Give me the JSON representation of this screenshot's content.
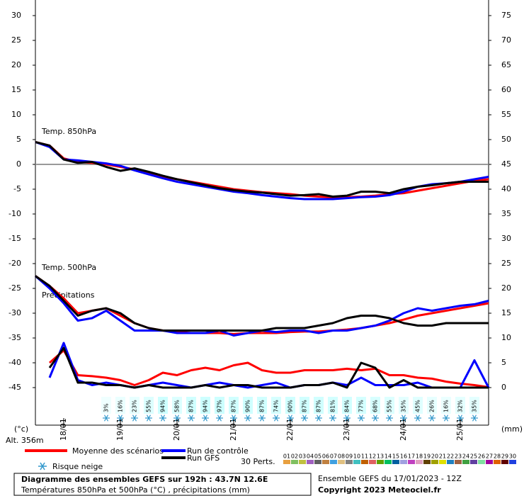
{
  "chart_data": {
    "type": "line",
    "x": [
      0,
      6,
      12,
      18,
      24,
      30,
      36,
      42,
      48,
      54,
      60,
      66,
      72,
      78,
      84,
      90,
      96,
      102,
      108,
      114,
      120,
      126,
      132,
      138,
      144,
      150,
      156,
      162,
      168,
      174,
      180,
      186,
      192
    ],
    "xlim": [
      0,
      192
    ],
    "xticks": [
      {
        "value": 12,
        "label": "18/01"
      },
      {
        "value": 36,
        "label": "19/01"
      },
      {
        "value": 60,
        "label": "20/01"
      },
      {
        "value": 84,
        "label": "21/01"
      },
      {
        "value": 108,
        "label": "22/01"
      },
      {
        "value": 132,
        "label": "23/01"
      },
      {
        "value": 156,
        "label": "24/01"
      },
      {
        "value": 180,
        "label": "25/01"
      }
    ],
    "ylim": [
      -45,
      30
    ],
    "yticks": [
      -45,
      -40,
      -35,
      -30,
      -25,
      -20,
      -15,
      -10,
      -5,
      0,
      5,
      10,
      15,
      20,
      25,
      30
    ],
    "y2lim": [
      0,
      75
    ],
    "y2ticks": [
      0,
      5,
      10,
      15,
      20,
      25,
      30,
      35,
      40,
      45,
      50,
      55,
      60,
      65,
      70,
      75
    ],
    "ylabel": "(°c)",
    "y2label": "(mm)",
    "altitude": "Alt. 356m",
    "annotations": [
      "Temp. 850hPa",
      "Temp. 500hPa",
      "Précipitations"
    ],
    "series": [
      {
        "name": "Moyenne des scénarios",
        "color": "#ff0000",
        "values": [
          4.5,
          3.8,
          1.2,
          0.5,
          0.3,
          0,
          -0.5,
          -1,
          -1.8,
          -2.5,
          -3,
          -3.5,
          -4,
          -4.5,
          -5,
          -5.3,
          -5.6,
          -5.8,
          -6,
          -6.3,
          -6.5,
          -6.6,
          -6.6,
          -6.5,
          -6.3,
          -6,
          -5.8,
          -5.3,
          -4.8,
          -4.3,
          -3.8,
          -3.3,
          -3
        ]
      },
      {
        "name": "Run de contrôle",
        "color": "#0000ff",
        "values": [
          4.5,
          3.5,
          1,
          0.8,
          0.5,
          0.2,
          -0.3,
          -1.2,
          -2,
          -2.8,
          -3.5,
          -4,
          -4.5,
          -5,
          -5.5,
          -5.8,
          -6.2,
          -6.5,
          -6.8,
          -7,
          -7,
          -7,
          -6.8,
          -6.6,
          -6.5,
          -6.2,
          -5.5,
          -4.5,
          -4,
          -3.8,
          -3.5,
          -3,
          -2.5
        ]
      },
      {
        "name": "Run GFS",
        "color": "#000000",
        "values": [
          4.5,
          3.8,
          1,
          0.3,
          0.5,
          -0.5,
          -1.3,
          -0.8,
          -1.5,
          -2.3,
          -3,
          -3.6,
          -4.2,
          -4.8,
          -5.2,
          -5.5,
          -5.7,
          -6,
          -6.3,
          -6.2,
          -6,
          -6.5,
          -6.3,
          -5.5,
          -5.5,
          -5.8,
          -5,
          -4.5,
          -4.2,
          -3.8,
          -3.5,
          -3.5,
          -3.5
        ]
      },
      {
        "name": "Moyenne des scénarios",
        "color": "#ff0000",
        "values": [
          -22.5,
          -24.5,
          -27,
          -30,
          -29.5,
          -29,
          -30.5,
          -32,
          -33,
          -33.5,
          -33.8,
          -34,
          -34,
          -34,
          -34.2,
          -34,
          -34,
          -34,
          -33.8,
          -33.7,
          -33.7,
          -33.5,
          -33.3,
          -33,
          -32.5,
          -32,
          -31.3,
          -30.5,
          -30,
          -29.5,
          -29,
          -28.5,
          -28
        ]
      },
      {
        "name": "Run de contrôle",
        "color": "#0000ff",
        "values": [
          -22.5,
          -25,
          -28,
          -31.5,
          -31,
          -29.5,
          -31.5,
          -33.5,
          -33.5,
          -33.5,
          -34,
          -34,
          -34,
          -33.5,
          -34.5,
          -34,
          -33.5,
          -33.8,
          -33.5,
          -33.5,
          -34,
          -33.5,
          -33.5,
          -33,
          -32.5,
          -31.5,
          -30,
          -29,
          -29.5,
          -29,
          -28.5,
          -28.2,
          -27.5
        ]
      },
      {
        "name": "Run GFS",
        "color": "#000000",
        "values": [
          -22.5,
          -24.5,
          -27.5,
          -30.5,
          -29.5,
          -29,
          -30,
          -32,
          -33,
          -33.5,
          -33.5,
          -33.5,
          -33.5,
          -33.5,
          -33.5,
          -33.5,
          -33.5,
          -33,
          -33,
          -33,
          -32.5,
          -32,
          -31,
          -30.5,
          -30.5,
          -31,
          -32,
          -32.5,
          -32.5,
          -32,
          -32,
          -32,
          -32
        ]
      },
      {
        "name": "Moyenne des scénarios",
        "color": "#ff0000",
        "axis": "y2",
        "values": [
          null,
          5,
          7.5,
          2.5,
          2.3,
          2,
          1.5,
          0.5,
          1.5,
          3,
          2.5,
          3.5,
          4,
          3.5,
          4.5,
          5,
          3.5,
          3,
          3,
          3.5,
          3.5,
          3.5,
          3.8,
          3.5,
          3.8,
          2.5,
          2.5,
          2,
          1.8,
          1.2,
          0.8,
          0.5,
          0.1
        ]
      },
      {
        "name": "Run de contrôle",
        "color": "#0000ff",
        "axis": "y2",
        "values": [
          null,
          2,
          9,
          1.5,
          0.5,
          1,
          0.5,
          0,
          0.5,
          1,
          0.5,
          0,
          0.5,
          1,
          0.5,
          0,
          0.5,
          1,
          0,
          0.5,
          0.5,
          1,
          0.5,
          2,
          0.5,
          0.5,
          0.5,
          1,
          0,
          0,
          0,
          5.5,
          0
        ]
      },
      {
        "name": "Run GFS",
        "color": "#000000",
        "axis": "y2",
        "values": [
          null,
          4,
          8,
          1,
          1,
          0.5,
          0.5,
          0,
          0.5,
          0,
          0,
          0,
          0.5,
          0,
          0.5,
          0.5,
          0,
          0,
          0,
          0.5,
          0.5,
          1,
          0,
          5,
          4,
          0,
          1.5,
          0,
          0,
          0,
          0,
          0,
          0
        ]
      }
    ],
    "snow_risk": {
      "label": "Risque neige",
      "x": [
        30,
        36,
        42,
        48,
        54,
        60,
        66,
        72,
        78,
        84,
        90,
        96,
        102,
        108,
        114,
        120,
        126,
        132,
        138,
        144,
        150,
        156,
        162,
        168,
        174,
        180,
        186
      ],
      "values": [
        3,
        16,
        23,
        55,
        94,
        58,
        87,
        94,
        97,
        87,
        90,
        87,
        74,
        90,
        87,
        87,
        81,
        84,
        77,
        68,
        55,
        35,
        45,
        26,
        16,
        32,
        35
      ],
      "value_labels": [
        "3%",
        "16%",
        "23%",
        "55%",
        "94%",
        "58%",
        "87%",
        "94%",
        "97%",
        "87%",
        "90%",
        "87%",
        "74%",
        "90%",
        "87%",
        "87%",
        "81%",
        "84%",
        "77%",
        "68%",
        "55%",
        "35%",
        "45%",
        "26%",
        "16%",
        "32%",
        "35%"
      ],
      "color": "#ccffff"
    },
    "perturbations": {
      "label": "30 Perts.",
      "items": [
        {
          "label": "01",
          "color": "#e8a040"
        },
        {
          "label": "02",
          "color": "#80c060"
        },
        {
          "label": "03",
          "color": "#c0c040"
        },
        {
          "label": "04",
          "color": "#a060c0"
        },
        {
          "label": "05",
          "color": "#606060"
        },
        {
          "label": "06",
          "color": "#c08040"
        },
        {
          "label": "07",
          "color": "#40a0e0"
        },
        {
          "label": "08",
          "color": "#e0c080"
        },
        {
          "label": "09",
          "color": "#808080"
        },
        {
          "label": "10",
          "color": "#40c0c0"
        },
        {
          "label": "11",
          "color": "#c06000"
        },
        {
          "label": "12",
          "color": "#e06060"
        },
        {
          "label": "13",
          "color": "#60a000"
        },
        {
          "label": "14",
          "color": "#00c060"
        },
        {
          "label": "15",
          "color": "#0060a0"
        },
        {
          "label": "16",
          "color": "#a0a0e0"
        },
        {
          "label": "17",
          "color": "#c040c0"
        },
        {
          "label": "18",
          "color": "#e0a0c0"
        },
        {
          "label": "19",
          "color": "#604000"
        },
        {
          "label": "20",
          "color": "#a0a000"
        },
        {
          "label": "21",
          "color": "#e0e000"
        },
        {
          "label": "22",
          "color": "#2080c0"
        },
        {
          "label": "23",
          "color": "#a06040"
        },
        {
          "label": "24",
          "color": "#40a040"
        },
        {
          "label": "25",
          "color": "#6040a0"
        },
        {
          "label": "26",
          "color": "#80e0a0"
        },
        {
          "label": "27",
          "color": "#a000a0"
        },
        {
          "label": "28",
          "color": "#e06000"
        },
        {
          "label": "29",
          "color": "#600000"
        },
        {
          "label": "30",
          "color": "#2040e0"
        }
      ]
    },
    "title": "Diagramme des ensembles GEFS sur 192h : 43.7N 12.6E",
    "subtitle": "Températures 850hPa et 500hPa (°C) , précipitations (mm)",
    "run_info": "Ensemble GEFS du 17/01/2023 - 12Z",
    "copyright": "Copyright 2023 Meteociel.fr"
  }
}
